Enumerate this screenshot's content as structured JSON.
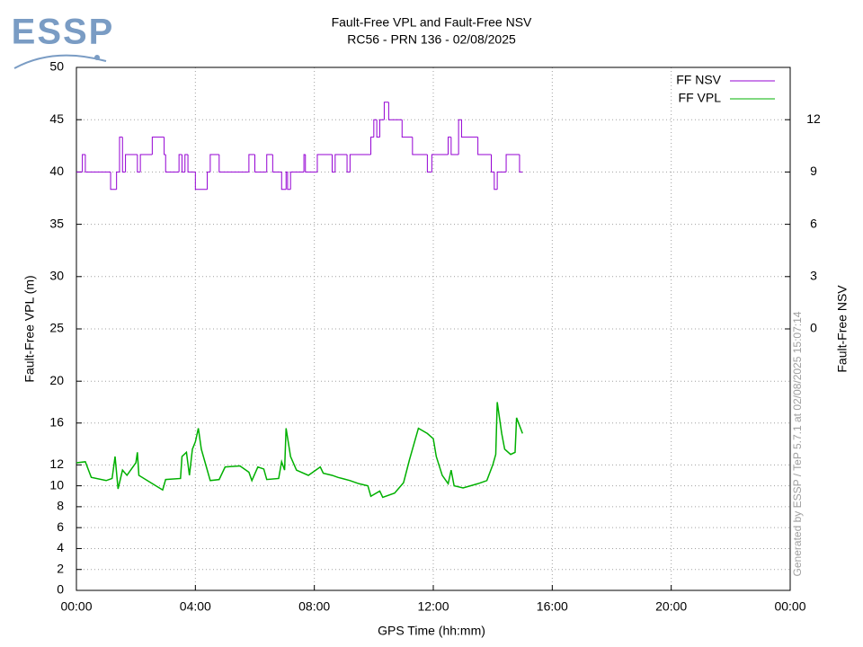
{
  "chart_data": {
    "type": "line",
    "logo": "ESSP",
    "title": "Fault-Free VPL and Fault-Free NSV",
    "subtitle": "RC56 - PRN 136 - 02/08/2025",
    "x_label": "GPS Time (hh:mm)",
    "y_label": "Fault-Free VPL (m)",
    "y2_label": "Fault-Free NSV",
    "annotation": "Generated by ESSP / TeP 5.7.1 at 02/08/2025 15:07:14",
    "xlim": [
      0,
      24
    ],
    "xticks": [
      {
        "value": 0,
        "label": "00:00"
      },
      {
        "value": 4,
        "label": "04:00"
      },
      {
        "value": 8,
        "label": "08:00"
      },
      {
        "value": 12,
        "label": "12:00"
      },
      {
        "value": 16,
        "label": "16:00"
      },
      {
        "value": 20,
        "label": "20:00"
      },
      {
        "value": 24,
        "label": "00:00"
      }
    ],
    "ylim": [
      0,
      50
    ],
    "yticks": [
      0,
      2,
      4,
      6,
      8,
      10,
      12,
      16,
      20,
      25,
      30,
      35,
      40,
      45,
      50
    ],
    "y2lim": [
      -15,
      15
    ],
    "y2ticks": [
      0,
      3,
      6,
      9,
      12
    ],
    "grid": true,
    "legend": "top-right",
    "series": [
      {
        "name": "FF NSV",
        "color": "#9400d3",
        "axis": "y2",
        "step": true,
        "x": [
          0,
          0.2,
          0.3,
          1.15,
          1.35,
          1.45,
          1.55,
          1.65,
          2.05,
          2.15,
          2.55,
          2.95,
          3.0,
          3.45,
          3.55,
          3.65,
          3.75,
          4.0,
          4.4,
          4.5,
          4.8,
          5.8,
          6.0,
          6.4,
          6.6,
          6.9,
          7.05,
          7.1,
          7.2,
          7.65,
          7.7,
          8.1,
          8.6,
          8.7,
          9.1,
          9.2,
          9.9,
          10.0,
          10.1,
          10.2,
          10.35,
          10.5,
          10.95,
          11.3,
          11.8,
          11.95,
          12.5,
          12.6,
          12.85,
          12.95,
          13.5,
          13.95,
          14.05,
          14.15,
          14.45,
          14.9,
          15.0
        ],
        "values": [
          9,
          10,
          9,
          8,
          9,
          11,
          9,
          10,
          9,
          10,
          11,
          10,
          9,
          10,
          9,
          10,
          9,
          8,
          9,
          10,
          9,
          10,
          9,
          10,
          9,
          8,
          9,
          8,
          9,
          10,
          9,
          10,
          9,
          10,
          9,
          10,
          11,
          12,
          11,
          12,
          13,
          12,
          11,
          10,
          9,
          10,
          11,
          10,
          12,
          11,
          10,
          9,
          8,
          9,
          10,
          9,
          9
        ]
      },
      {
        "name": "FF VPL",
        "color": "#00b000",
        "x": [
          0,
          0.3,
          0.5,
          1.0,
          1.2,
          1.3,
          1.4,
          1.55,
          1.7,
          2.0,
          2.05,
          2.1,
          2.5,
          2.9,
          3.0,
          3.5,
          3.55,
          3.7,
          3.8,
          3.9,
          4.0,
          4.1,
          4.2,
          4.3,
          4.5,
          4.8,
          5.0,
          5.5,
          5.8,
          5.9,
          6.1,
          6.3,
          6.4,
          6.8,
          6.9,
          7.0,
          7.05,
          7.2,
          7.4,
          7.8,
          8.2,
          8.3,
          8.6,
          8.8,
          9.2,
          9.5,
          9.8,
          9.9,
          10.2,
          10.3,
          10.7,
          11.0,
          11.2,
          11.4,
          11.5,
          11.8,
          12.0,
          12.1,
          12.3,
          12.5,
          12.6,
          12.7,
          13.0,
          13.5,
          13.8,
          14.0,
          14.1,
          14.15,
          14.3,
          14.4,
          14.6,
          14.75,
          14.8,
          15.0
        ],
        "values": [
          12.2,
          12.3,
          10.8,
          10.5,
          10.7,
          12.8,
          9.7,
          11.5,
          11.0,
          12.2,
          13.2,
          11.0,
          10.3,
          9.6,
          10.6,
          10.7,
          12.8,
          13.2,
          11.0,
          13.5,
          14.2,
          15.5,
          13.5,
          12.5,
          10.5,
          10.6,
          11.8,
          11.9,
          11.3,
          10.5,
          11.8,
          11.6,
          10.6,
          10.7,
          12.3,
          11.5,
          15.5,
          12.8,
          11.5,
          11.0,
          11.8,
          11.2,
          11.0,
          10.8,
          10.5,
          10.2,
          10.0,
          9.0,
          9.5,
          8.9,
          9.3,
          10.3,
          12.5,
          14.5,
          15.5,
          15.0,
          14.5,
          12.8,
          11.0,
          10.2,
          11.5,
          10.0,
          9.8,
          10.2,
          10.5,
          12.0,
          13.0,
          18.0,
          15.0,
          13.5,
          13.0,
          13.2,
          16.5,
          15.0
        ]
      }
    ]
  }
}
